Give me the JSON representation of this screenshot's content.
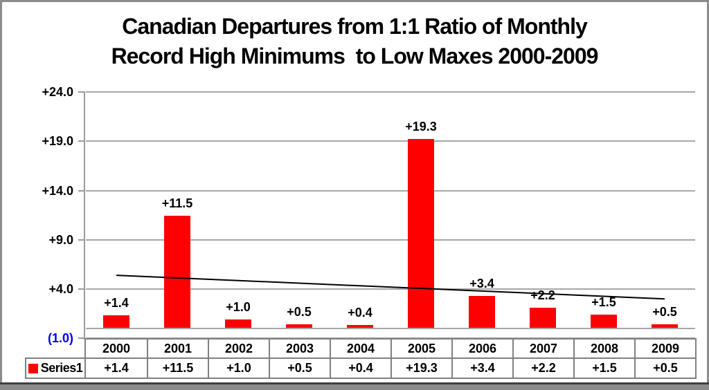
{
  "chart_data": {
    "type": "bar",
    "title": "Canadian Departures from 1:1 Ratio of Monthly Record High Minimums  to Low Maxes 2000-2009",
    "title_lines": [
      "Canadian Departures from 1:1 Ratio of Monthly",
      "Record High Minimums  to Low Maxes 2000-2009"
    ],
    "categories": [
      "2000",
      "2001",
      "2002",
      "2003",
      "2004",
      "2005",
      "2006",
      "2007",
      "2008",
      "2009"
    ],
    "series": [
      {
        "name": "Series1",
        "color": "#FF0000",
        "values": [
          1.4,
          11.5,
          1.0,
          0.5,
          0.4,
          19.3,
          3.4,
          2.2,
          1.5,
          0.5
        ],
        "labels": [
          "+1.4",
          "+11.5",
          "+1.0",
          "+0.5",
          "+0.4",
          "+19.3",
          "+3.4",
          "+2.2",
          "+1.5",
          "+0.5"
        ]
      }
    ],
    "y_ticks": [
      {
        "value": 24,
        "label": "+24.0",
        "color": "#000000"
      },
      {
        "value": 19,
        "label": "+19.0",
        "color": "#000000"
      },
      {
        "value": 14,
        "label": "+14.0",
        "color": "#000000"
      },
      {
        "value": 9,
        "label": "+9.0",
        "color": "#000000"
      },
      {
        "value": 4,
        "label": "+4.0",
        "color": "#000000"
      },
      {
        "value": -1,
        "label": "(1.0)",
        "color": "#0000FF"
      }
    ],
    "ylim": [
      -1.0,
      24.0
    ],
    "xlabel": "",
    "ylabel": "",
    "grid": true,
    "data_table_shown": true,
    "legend_position": "data-table-left",
    "trendline": {
      "type": "linear",
      "start_value": 5.4,
      "end_value": 3.0,
      "color": "#000000"
    },
    "colors": {
      "bar": "#FF0000",
      "grid": "#A6A6A6",
      "axis": "#9B9B9B",
      "table_border": "#808080",
      "negative_tick_label": "#0000FF",
      "text": "#000000",
      "frame": "#8C8C8C",
      "frame_bottom": "#3F3F3F"
    }
  }
}
